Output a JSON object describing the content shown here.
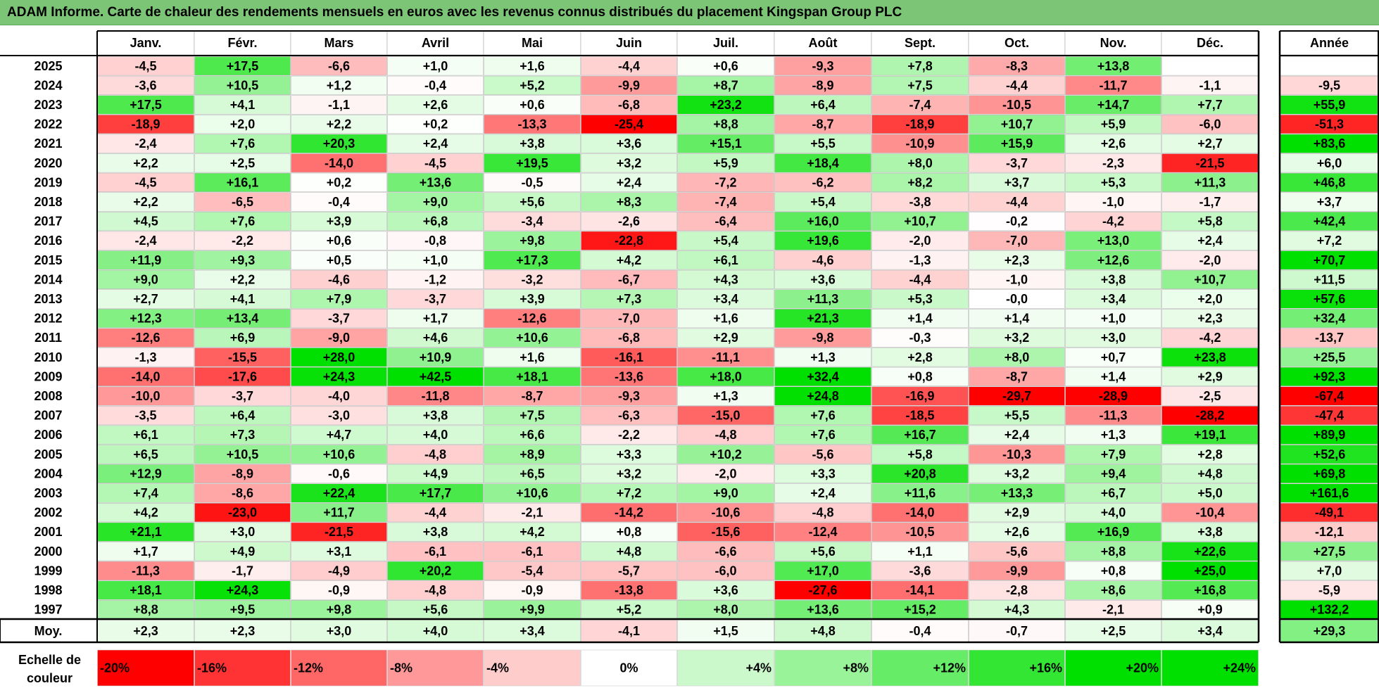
{
  "title": "ADAM Informe. Carte de chaleur des rendements mensuels en euros avec les revenus connus distribués du placement Kingspan Group PLC",
  "chart_data": {
    "type": "heatmap",
    "months": [
      "Janv.",
      "Févr.",
      "Mars",
      "Avril",
      "Mai",
      "Juin",
      "Juil.",
      "Août",
      "Sept.",
      "Oct.",
      "Nov.",
      "Déc."
    ],
    "year_header": "Année",
    "rows": [
      {
        "year": "2025",
        "values": [
          -4.5,
          17.5,
          -6.6,
          1.0,
          1.6,
          -4.4,
          0.6,
          -9.3,
          7.8,
          -8.3,
          13.8,
          null
        ],
        "annual": null
      },
      {
        "year": "2024",
        "values": [
          -3.6,
          10.5,
          1.2,
          -0.4,
          5.2,
          -9.9,
          8.7,
          -8.9,
          7.5,
          -4.4,
          -11.7,
          -1.1
        ],
        "annual": -9.5
      },
      {
        "year": "2023",
        "values": [
          17.5,
          4.1,
          -1.1,
          2.6,
          0.6,
          -6.8,
          23.2,
          6.4,
          -7.4,
          -10.5,
          14.7,
          7.7
        ],
        "annual": 55.9
      },
      {
        "year": "2022",
        "values": [
          -18.9,
          2.0,
          2.2,
          0.2,
          -13.3,
          -25.4,
          8.8,
          -8.7,
          -18.9,
          10.7,
          5.9,
          -6.0
        ],
        "annual": -51.3
      },
      {
        "year": "2021",
        "values": [
          -2.4,
          7.6,
          20.3,
          2.4,
          3.8,
          3.6,
          15.1,
          5.5,
          -10.9,
          15.9,
          2.6,
          2.7
        ],
        "annual": 83.6
      },
      {
        "year": "2020",
        "values": [
          2.2,
          2.5,
          -14.0,
          -4.5,
          19.5,
          3.2,
          5.9,
          18.4,
          8.0,
          -3.7,
          -2.3,
          -21.5
        ],
        "annual": 6.0
      },
      {
        "year": "2019",
        "values": [
          -4.5,
          16.1,
          0.2,
          13.6,
          -0.5,
          2.4,
          -7.2,
          -6.2,
          8.2,
          3.7,
          5.3,
          11.3
        ],
        "annual": 46.8
      },
      {
        "year": "2018",
        "values": [
          2.2,
          -6.5,
          -0.4,
          9.0,
          5.6,
          8.3,
          -7.4,
          5.4,
          -3.8,
          -4.4,
          -1.0,
          -1.7
        ],
        "annual": 3.7
      },
      {
        "year": "2017",
        "values": [
          4.5,
          7.6,
          3.9,
          6.8,
          -3.4,
          -2.6,
          -6.4,
          16.0,
          10.7,
          -0.2,
          -4.2,
          5.8
        ],
        "annual": 42.4
      },
      {
        "year": "2016",
        "values": [
          -2.4,
          -2.2,
          0.6,
          -0.8,
          9.8,
          -22.8,
          5.4,
          19.6,
          -2.0,
          -7.0,
          13.0,
          2.4
        ],
        "annual": 7.2
      },
      {
        "year": "2015",
        "values": [
          11.9,
          9.3,
          0.5,
          1.0,
          17.3,
          4.2,
          6.1,
          -4.6,
          -1.3,
          2.3,
          12.6,
          -2.0
        ],
        "annual": 70.7
      },
      {
        "year": "2014",
        "values": [
          9.0,
          2.2,
          -4.6,
          -1.2,
          -3.2,
          -6.7,
          4.3,
          3.6,
          -4.4,
          -1.0,
          3.8,
          10.7
        ],
        "annual": 11.5
      },
      {
        "year": "2013",
        "values": [
          2.7,
          4.1,
          7.9,
          -3.7,
          3.9,
          7.3,
          3.4,
          11.3,
          5.3,
          -0.0,
          3.4,
          2.0
        ],
        "annual": 57.6
      },
      {
        "year": "2012",
        "values": [
          12.3,
          13.4,
          -3.7,
          1.7,
          -12.6,
          -7.0,
          1.6,
          21.3,
          1.4,
          1.4,
          1.0,
          2.3
        ],
        "annual": 32.4
      },
      {
        "year": "2011",
        "values": [
          -12.6,
          6.9,
          -9.0,
          4.6,
          10.6,
          -6.8,
          2.9,
          -9.8,
          -0.3,
          3.2,
          3.0,
          -4.2
        ],
        "annual": -13.7
      },
      {
        "year": "2010",
        "values": [
          -1.3,
          -15.5,
          28.0,
          10.9,
          1.6,
          -16.1,
          -11.1,
          1.3,
          2.8,
          8.0,
          0.7,
          23.8
        ],
        "annual": 25.5
      },
      {
        "year": "2009",
        "values": [
          -14.0,
          -17.6,
          24.3,
          42.5,
          18.1,
          -13.6,
          18.0,
          32.4,
          0.8,
          -8.7,
          1.4,
          2.9
        ],
        "annual": 92.3
      },
      {
        "year": "2008",
        "values": [
          -10.0,
          -3.7,
          -4.0,
          -11.8,
          -8.7,
          -9.3,
          1.3,
          24.8,
          -16.9,
          -29.7,
          -28.9,
          -2.5
        ],
        "annual": -67.4
      },
      {
        "year": "2007",
        "values": [
          -3.5,
          6.4,
          -3.0,
          3.8,
          7.5,
          -6.3,
          -15.0,
          7.6,
          -18.5,
          5.5,
          -11.3,
          -28.2
        ],
        "annual": -47.4
      },
      {
        "year": "2006",
        "values": [
          6.1,
          7.3,
          4.7,
          4.0,
          6.6,
          -2.2,
          -4.8,
          7.6,
          16.7,
          2.4,
          1.3,
          19.1
        ],
        "annual": 89.9
      },
      {
        "year": "2005",
        "values": [
          6.5,
          10.5,
          10.6,
          -4.8,
          8.9,
          3.3,
          10.2,
          -5.6,
          5.8,
          -10.3,
          7.9,
          2.8
        ],
        "annual": 52.6
      },
      {
        "year": "2004",
        "values": [
          12.9,
          -8.9,
          -0.6,
          4.9,
          6.5,
          3.2,
          -2.0,
          3.3,
          20.8,
          3.2,
          9.4,
          4.8
        ],
        "annual": 69.8
      },
      {
        "year": "2003",
        "values": [
          7.4,
          -8.6,
          22.4,
          17.7,
          10.6,
          7.2,
          9.0,
          2.4,
          11.6,
          13.3,
          6.7,
          5.0
        ],
        "annual": 161.6
      },
      {
        "year": "2002",
        "values": [
          4.2,
          -23.0,
          11.7,
          -4.4,
          -2.1,
          -14.2,
          -10.6,
          -4.8,
          -14.0,
          2.9,
          4.0,
          -10.4
        ],
        "annual": -49.1
      },
      {
        "year": "2001",
        "values": [
          21.1,
          3.0,
          -21.5,
          3.8,
          4.2,
          0.8,
          -15.6,
          -12.4,
          -10.5,
          2.6,
          16.9,
          3.8
        ],
        "annual": -12.1
      },
      {
        "year": "2000",
        "values": [
          1.7,
          4.9,
          3.1,
          -6.1,
          -6.1,
          4.8,
          -6.6,
          5.6,
          1.1,
          -5.6,
          8.8,
          22.6
        ],
        "annual": 27.5
      },
      {
        "year": "1999",
        "values": [
          -11.3,
          -1.7,
          -4.9,
          20.2,
          -5.4,
          -5.7,
          -6.0,
          17.0,
          -3.6,
          -9.9,
          0.8,
          25.0
        ],
        "annual": 7.0
      },
      {
        "year": "1998",
        "values": [
          18.1,
          24.3,
          -0.9,
          -4.8,
          -0.9,
          -13.8,
          3.6,
          -27.6,
          -14.1,
          -2.8,
          8.6,
          16.8
        ],
        "annual": -5.9
      },
      {
        "year": "1997",
        "values": [
          8.8,
          9.5,
          9.8,
          5.6,
          9.9,
          5.2,
          8.0,
          13.6,
          15.2,
          4.3,
          -2.1,
          0.9
        ],
        "annual": 132.2
      }
    ],
    "average": {
      "label": "Moy.",
      "values": [
        2.3,
        2.3,
        3.0,
        4.0,
        3.4,
        -4.1,
        1.5,
        4.8,
        -0.4,
        -0.7,
        2.5,
        3.4
      ],
      "annual": 29.3
    },
    "scale": {
      "label_line1": "Echelle de",
      "label_line2": "couleur",
      "steps": [
        "-20%",
        "-16%",
        "-12%",
        "-8%",
        "-4%",
        "0%",
        "+4%",
        "+8%",
        "+12%",
        "+16%",
        "+20%",
        "+24%"
      ],
      "step_values": [
        -20,
        -16,
        -12,
        -8,
        -4,
        0,
        4,
        8,
        12,
        16,
        20,
        24
      ]
    },
    "colors": {
      "neg_max": "#ff0000",
      "neutral": "#ffffff",
      "pos_max": "#00e000",
      "title_bar": "#7cc576"
    }
  }
}
